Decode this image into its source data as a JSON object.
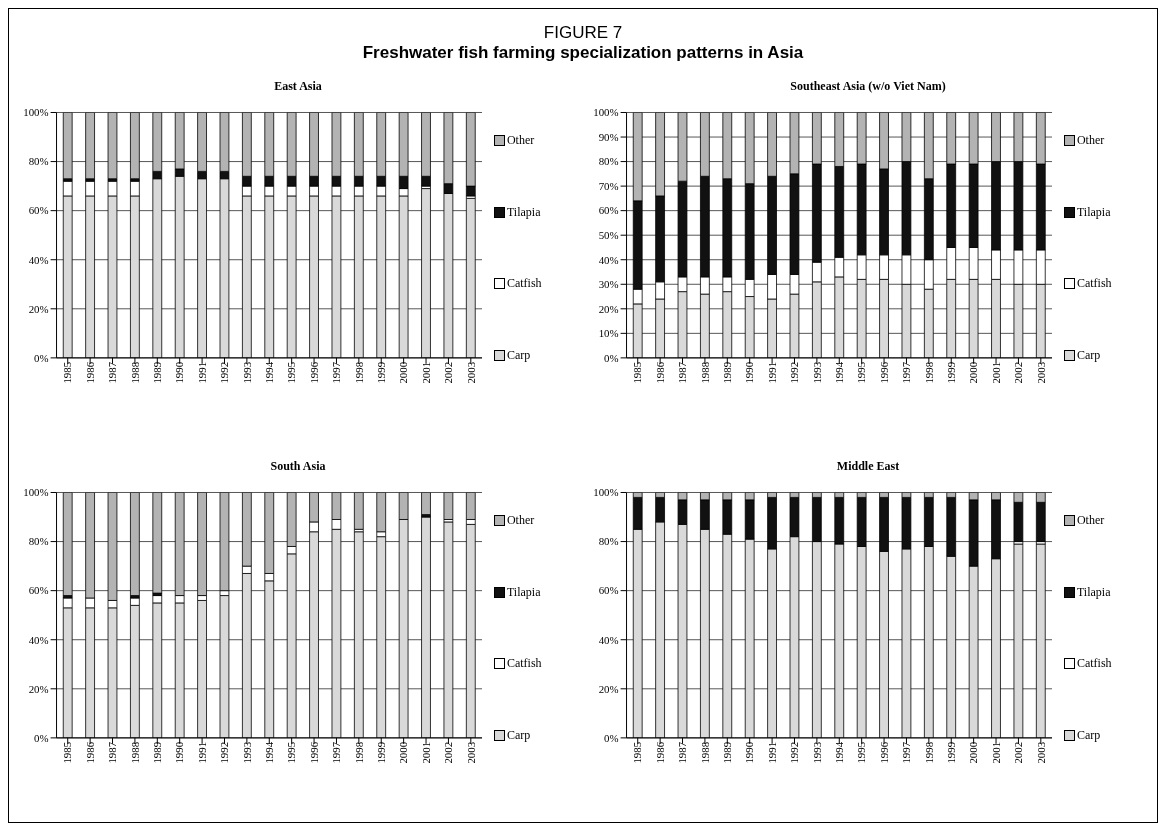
{
  "chart_data": [
    {
      "type": "bar",
      "stacked": true,
      "title": "East Asia",
      "annotations": [
        "FIGURE 7",
        "Freshwater fish farming specialization patterns in Asia"
      ],
      "legend": "right",
      "grid": "y",
      "categories": [
        "1985",
        "1986",
        "1987",
        "1988",
        "1989",
        "1990",
        "1991",
        "1992",
        "1993",
        "1994",
        "1995",
        "1996",
        "1997",
        "1998",
        "1999",
        "2000",
        "2001",
        "2002",
        "2003"
      ],
      "ylim": [
        0,
        100
      ],
      "yticks": [
        {
          "value": 0,
          "label": "0%"
        },
        {
          "value": 20,
          "label": "20%"
        },
        {
          "value": 40,
          "label": "40%"
        },
        {
          "value": 60,
          "label": "60%"
        },
        {
          "value": 80,
          "label": "80%"
        },
        {
          "value": 100,
          "label": "100%"
        }
      ],
      "series": [
        {
          "name": "Carp",
          "color": "#d9d9d9",
          "values": [
            66,
            66,
            66,
            66,
            73,
            74,
            73,
            73,
            66,
            66,
            66,
            66,
            66,
            66,
            66,
            66,
            69,
            67,
            65
          ]
        },
        {
          "name": "Catfish",
          "color": "#ffffff",
          "values": [
            6,
            6,
            6,
            6,
            0,
            0,
            0,
            0,
            4,
            4,
            4,
            4,
            4,
            4,
            4,
            3,
            1,
            0,
            1
          ]
        },
        {
          "name": "Tilapia",
          "color": "#111111",
          "values": [
            1,
            1,
            1,
            1,
            3,
            3,
            3,
            3,
            4,
            4,
            4,
            4,
            4,
            4,
            4,
            5,
            4,
            4,
            4
          ]
        },
        {
          "name": "Other",
          "color": "#b3b3b3",
          "values": [
            27,
            27,
            27,
            27,
            24,
            23,
            24,
            24,
            26,
            26,
            26,
            26,
            26,
            26,
            26,
            26,
            26,
            29,
            30
          ]
        }
      ]
    },
    {
      "type": "bar",
      "stacked": true,
      "title": "Southeast Asia (w/o Viet Nam)",
      "legend": "right",
      "grid": "y",
      "categories": [
        "1985",
        "1986",
        "1987",
        "1988",
        "1989",
        "1990",
        "1991",
        "1992",
        "1993",
        "1994",
        "1995",
        "1996",
        "1997",
        "1998",
        "1999",
        "2000",
        "2001",
        "2002",
        "2003"
      ],
      "ylim": [
        0,
        100
      ],
      "yticks": [
        {
          "value": 0,
          "label": "0%"
        },
        {
          "value": 10,
          "label": "10%"
        },
        {
          "value": 20,
          "label": "20%"
        },
        {
          "value": 30,
          "label": "30%"
        },
        {
          "value": 40,
          "label": "40%"
        },
        {
          "value": 50,
          "label": "50%"
        },
        {
          "value": 60,
          "label": "60%"
        },
        {
          "value": 70,
          "label": "70%"
        },
        {
          "value": 80,
          "label": "80%"
        },
        {
          "value": 90,
          "label": "90%"
        },
        {
          "value": 100,
          "label": "100%"
        }
      ],
      "series": [
        {
          "name": "Carp",
          "color": "#d9d9d9",
          "values": [
            22,
            24,
            27,
            26,
            27,
            25,
            24,
            26,
            31,
            33,
            32,
            32,
            30,
            28,
            32,
            32,
            32,
            30,
            30
          ]
        },
        {
          "name": "Catfish",
          "color": "#ffffff",
          "values": [
            6,
            7,
            6,
            7,
            6,
            7,
            10,
            8,
            8,
            8,
            10,
            10,
            12,
            12,
            13,
            13,
            12,
            14,
            14
          ]
        },
        {
          "name": "Tilapia",
          "color": "#111111",
          "values": [
            36,
            35,
            39,
            41,
            40,
            39,
            40,
            41,
            40,
            37,
            37,
            35,
            38,
            33,
            34,
            34,
            36,
            36,
            35
          ]
        },
        {
          "name": "Other",
          "color": "#b3b3b3",
          "values": [
            36,
            34,
            28,
            26,
            27,
            29,
            26,
            25,
            21,
            22,
            21,
            23,
            20,
            27,
            21,
            21,
            20,
            20,
            21
          ]
        }
      ]
    },
    {
      "type": "bar",
      "stacked": true,
      "title": "South Asia",
      "legend": "right",
      "grid": "y",
      "categories": [
        "1985",
        "1986",
        "1987",
        "1988",
        "1989",
        "1990",
        "1991",
        "1992",
        "1993",
        "1994",
        "1995",
        "1996",
        "1997",
        "1998",
        "1999",
        "2000",
        "2001",
        "2002",
        "2003"
      ],
      "ylim": [
        0,
        100
      ],
      "yticks": [
        {
          "value": 0,
          "label": "0%"
        },
        {
          "value": 20,
          "label": "20%"
        },
        {
          "value": 40,
          "label": "40%"
        },
        {
          "value": 60,
          "label": "60%"
        },
        {
          "value": 80,
          "label": "80%"
        },
        {
          "value": 100,
          "label": "100%"
        }
      ],
      "series": [
        {
          "name": "Carp",
          "color": "#d9d9d9",
          "values": [
            53,
            53,
            53,
            54,
            55,
            55,
            56,
            58,
            67,
            64,
            75,
            84,
            85,
            84,
            82,
            89,
            90,
            88,
            87
          ]
        },
        {
          "name": "Catfish",
          "color": "#ffffff",
          "values": [
            4,
            4,
            3,
            3,
            3,
            3,
            2,
            2,
            3,
            3,
            3,
            4,
            4,
            1,
            2,
            0,
            0,
            1,
            2
          ]
        },
        {
          "name": "Tilapia",
          "color": "#111111",
          "values": [
            1,
            0,
            0,
            1,
            1,
            0,
            0,
            0,
            0,
            0,
            0,
            0,
            0,
            0,
            0,
            0,
            1,
            0,
            0
          ]
        },
        {
          "name": "Other",
          "color": "#b3b3b3",
          "values": [
            42,
            43,
            44,
            42,
            41,
            42,
            42,
            40,
            30,
            33,
            22,
            12,
            11,
            15,
            16,
            11,
            9,
            11,
            11
          ]
        }
      ]
    },
    {
      "type": "bar",
      "stacked": true,
      "title": "Middle East",
      "legend": "right",
      "grid": "y",
      "categories": [
        "1985",
        "1986",
        "1987",
        "1988",
        "1989",
        "1990",
        "1991",
        "1992",
        "1993",
        "1994",
        "1995",
        "1996",
        "1997",
        "1998",
        "1999",
        "2000",
        "2001",
        "2002",
        "2003"
      ],
      "ylim": [
        0,
        100
      ],
      "yticks": [
        {
          "value": 0,
          "label": "0%"
        },
        {
          "value": 20,
          "label": "20%"
        },
        {
          "value": 40,
          "label": "40%"
        },
        {
          "value": 60,
          "label": "60%"
        },
        {
          "value": 80,
          "label": "80%"
        },
        {
          "value": 100,
          "label": "100%"
        }
      ],
      "series": [
        {
          "name": "Carp",
          "color": "#d9d9d9",
          "values": [
            85,
            88,
            87,
            85,
            83,
            81,
            77,
            82,
            80,
            79,
            78,
            76,
            77,
            78,
            74,
            70,
            73,
            79,
            79
          ]
        },
        {
          "name": "Catfish",
          "color": "#ffffff",
          "values": [
            0,
            0,
            0,
            0,
            0,
            0,
            0,
            0,
            0,
            0,
            0,
            0,
            0,
            0,
            0,
            0,
            0,
            1,
            1
          ]
        },
        {
          "name": "Tilapia",
          "color": "#111111",
          "values": [
            13,
            10,
            10,
            12,
            14,
            16,
            21,
            16,
            18,
            19,
            20,
            22,
            21,
            20,
            24,
            27,
            24,
            16,
            16
          ]
        },
        {
          "name": "Other",
          "color": "#b3b3b3",
          "values": [
            2,
            2,
            3,
            3,
            3,
            3,
            2,
            2,
            2,
            2,
            2,
            2,
            2,
            2,
            2,
            3,
            3,
            4,
            4
          ]
        }
      ]
    }
  ]
}
